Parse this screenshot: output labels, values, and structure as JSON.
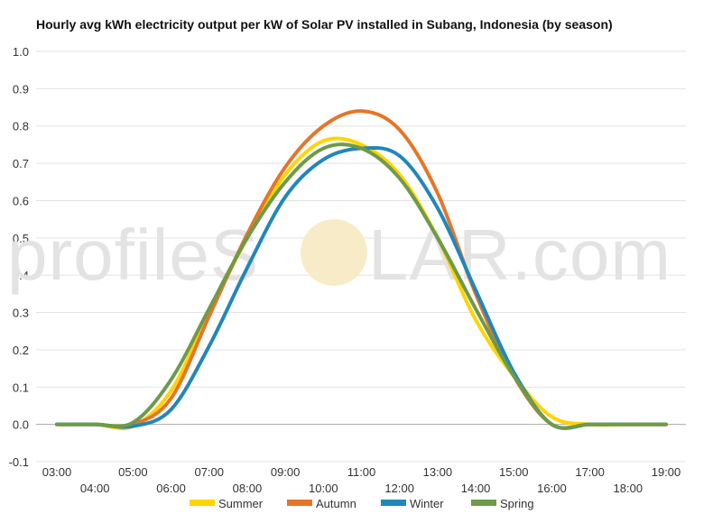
{
  "watermark": {
    "text_left": "profileS",
    "text_right": "LAR.com",
    "sun_color": "#f8ecc8",
    "text_color": "#e3e3e3"
  },
  "chart_data": {
    "type": "line",
    "title": "Hourly avg kWh electricity output per kW of Solar PV installed in Subang, Indonesia (by season)",
    "xlabel": "",
    "ylabel": "",
    "ylim": [
      -0.1,
      1.0
    ],
    "yticks": [
      "-0.1",
      "0.0",
      "0.1",
      "0.2",
      "0.3",
      "0.4",
      "0.5",
      "0.6",
      "0.7",
      "0.8",
      "0.9",
      "1.0"
    ],
    "x": [
      "03:00",
      "04:00",
      "05:00",
      "06:00",
      "07:00",
      "08:00",
      "09:00",
      "10:00",
      "11:00",
      "12:00",
      "13:00",
      "14:00",
      "15:00",
      "16:00",
      "17:00",
      "18:00",
      "19:00"
    ],
    "grid": true,
    "legend_position": "bottom",
    "series": [
      {
        "name": "Summer",
        "color": "#ffd400",
        "values": [
          0.0,
          0.0,
          -0.005,
          0.09,
          0.3,
          0.5,
          0.67,
          0.76,
          0.75,
          0.67,
          0.5,
          0.28,
          0.13,
          0.02,
          0.0,
          0.0,
          0.0
        ]
      },
      {
        "name": "Autumn",
        "color": "#e4762a",
        "values": [
          0.0,
          0.0,
          0.0,
          0.07,
          0.29,
          0.51,
          0.69,
          0.8,
          0.84,
          0.79,
          0.62,
          0.35,
          0.13,
          0.0,
          0.0,
          0.0,
          0.0
        ]
      },
      {
        "name": "Winter",
        "color": "#2187bb",
        "values": [
          0.0,
          0.0,
          -0.005,
          0.04,
          0.21,
          0.42,
          0.61,
          0.71,
          0.74,
          0.72,
          0.58,
          0.36,
          0.14,
          0.0,
          0.0,
          0.0,
          0.0
        ]
      },
      {
        "name": "Spring",
        "color": "#6e9a4a",
        "values": [
          0.0,
          0.0,
          0.005,
          0.12,
          0.31,
          0.5,
          0.65,
          0.74,
          0.74,
          0.66,
          0.5,
          0.31,
          0.13,
          0.0,
          0.0,
          0.0,
          0.0
        ]
      }
    ]
  }
}
